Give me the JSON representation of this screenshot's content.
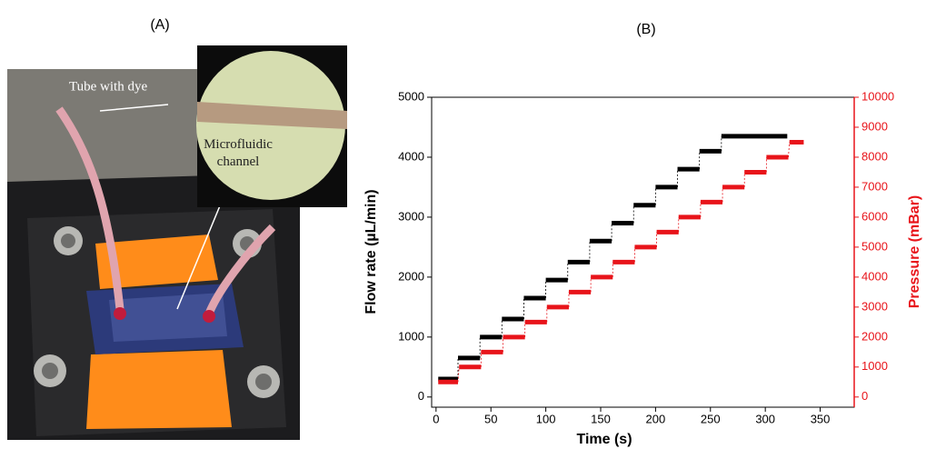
{
  "figure": {
    "panel_labels": [
      "(A)",
      "(B)"
    ],
    "photo_annotations": [
      "Tube with dye",
      "Microfluidic channel"
    ]
  },
  "chart_data": {
    "type": "step",
    "x_label": "Time (s)",
    "y_label": "Flow rate (µL/min)",
    "y2_label": "Pressure (mBar)",
    "xlim": [
      -4,
      381
    ],
    "xticks": [
      0,
      50,
      100,
      150,
      200,
      250,
      300,
      350
    ],
    "ylim": [
      -170,
      5000
    ],
    "yticks": [
      0,
      1000,
      2000,
      3000,
      4000,
      5000
    ],
    "y2lim": [
      -340,
      10000
    ],
    "y2ticks": [
      0,
      1000,
      2000,
      3000,
      4000,
      5000,
      6000,
      7000,
      8000,
      9000,
      10000
    ],
    "y2_color": "#e8141a",
    "series": [
      {
        "color": "#000000",
        "x": [
          2,
          20,
          20,
          40,
          40,
          60,
          60,
          80,
          80,
          100,
          100,
          120,
          120,
          140,
          140,
          160,
          160,
          180,
          180,
          200,
          200,
          220,
          220,
          240,
          240,
          260,
          260,
          320
        ],
        "values": [
          300,
          300,
          650,
          650,
          1000,
          1000,
          1300,
          1300,
          1650,
          1650,
          1950,
          1950,
          2250,
          2250,
          2600,
          2600,
          2900,
          2900,
          3200,
          3200,
          3500,
          3500,
          3800,
          3800,
          4100,
          4100,
          4350,
          4350
        ]
      },
      {
        "color": "#e8141a",
        "axis": "y2",
        "x": [
          2,
          20,
          21,
          41,
          41,
          61,
          61,
          81,
          81,
          101,
          101,
          121,
          121,
          141,
          141,
          161,
          161,
          181,
          181,
          201,
          201,
          221,
          221,
          241,
          241,
          261,
          261,
          281,
          281,
          301,
          301,
          321,
          322,
          335
        ],
        "values": [
          500,
          500,
          1000,
          1000,
          1500,
          1500,
          2000,
          2000,
          2500,
          2500,
          3000,
          3000,
          3500,
          3500,
          4000,
          4000,
          4500,
          4500,
          5000,
          5000,
          5500,
          5500,
          6000,
          6000,
          6500,
          6500,
          7000,
          7000,
          7500,
          7500,
          8000,
          8000,
          8500,
          8500
        ]
      }
    ]
  }
}
